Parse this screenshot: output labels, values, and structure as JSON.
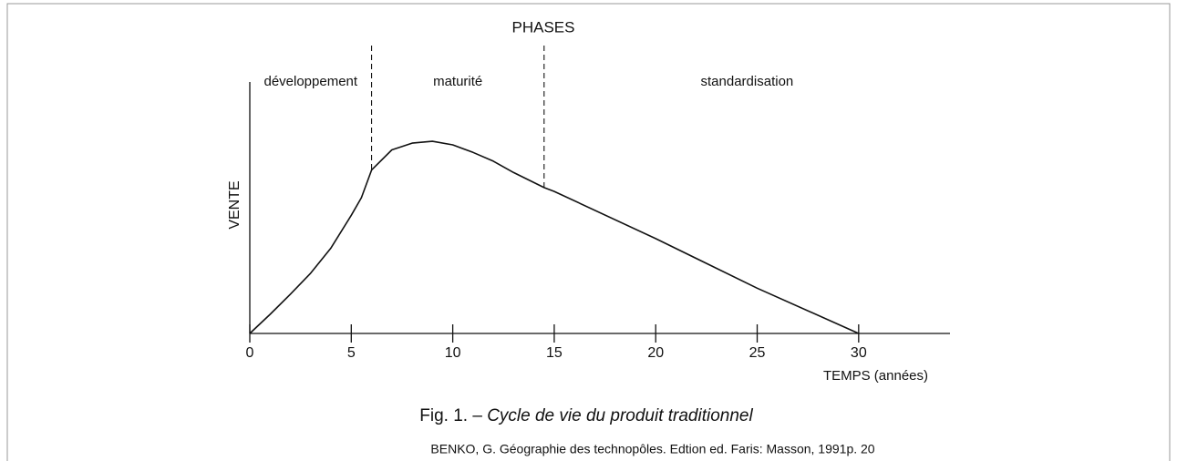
{
  "chart_data": {
    "type": "line",
    "y_label": "VENTE",
    "x_label": "TEMPS (années)",
    "fig_label": "Fig. 1. –",
    "title": "Cycle de vie du produit traditionnel",
    "source": "BENKO, G. Géographie des technopôles. Edtion ed. Faris: Masson, 1991p. 20",
    "phases": {
      "title": "PHASES",
      "labels": [
        "développement",
        "maturité",
        "standardisation"
      ],
      "boundaries": [
        6,
        14.5
      ]
    },
    "x": [
      0,
      1,
      2,
      3,
      4,
      5,
      5.5,
      6,
      7,
      8,
      9,
      10,
      11,
      12,
      13,
      14.5,
      15,
      20,
      25,
      30
    ],
    "values": [
      0,
      7.6,
      15.6,
      24,
      34,
      47,
      54,
      65,
      73,
      75.7,
      76.4,
      75,
      72,
      68.5,
      64,
      58,
      56.5,
      37.7,
      18,
      0
    ],
    "color": "#111111",
    "xlim": [
      0,
      34.5
    ],
    "ylim": [
      0,
      100
    ],
    "xticks": [
      0,
      5,
      10,
      15,
      20,
      25,
      30
    ]
  }
}
